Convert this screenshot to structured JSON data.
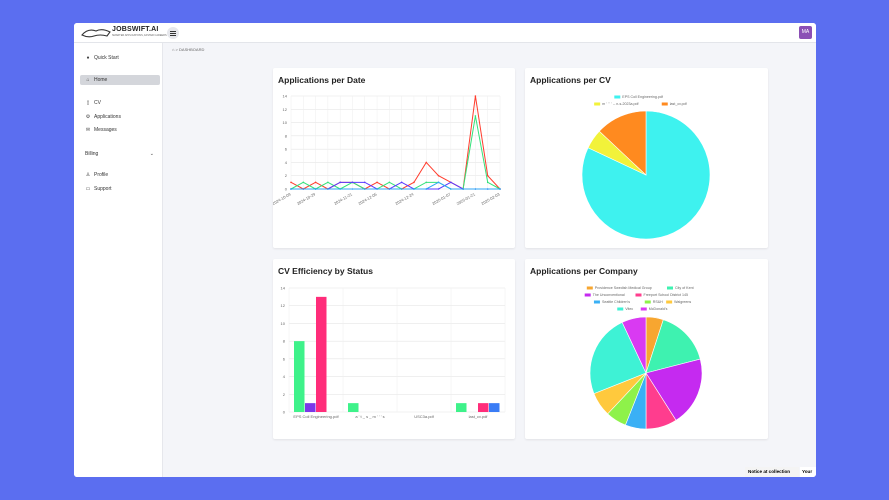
{
  "app": {
    "title": "JOBSWIFT.AI",
    "subtitle": "SMARTER APPLICATIONS, FASTER CAREERS",
    "avatar_initials": "MA"
  },
  "breadcrumb": {
    "home_icon": "home-icon",
    "separator": ">",
    "current": "DASHBOARD"
  },
  "sidebar": {
    "items": [
      {
        "label": "Quick Start",
        "icon": "dot-icon",
        "glyph": "●"
      },
      {
        "label": "Home",
        "icon": "home-icon",
        "glyph": "⌂"
      },
      {
        "label": "CV",
        "icon": "document-icon",
        "glyph": "▯"
      },
      {
        "label": "Applications",
        "icon": "gear-icon",
        "glyph": "⚙"
      },
      {
        "label": "Messages",
        "icon": "envelope-icon",
        "glyph": "✉"
      },
      {
        "label": "Billing",
        "icon": "",
        "glyph": ""
      },
      {
        "label": "Profile",
        "icon": "user-icon",
        "glyph": "♙"
      },
      {
        "label": "Support",
        "icon": "message-icon",
        "glyph": "▭"
      }
    ]
  },
  "cards": {
    "apps_per_date": {
      "title": "Applications per Date"
    },
    "apps_per_cv": {
      "title": "Applications per CV"
    },
    "cv_efficiency": {
      "title": "CV Efficiency by Status"
    },
    "apps_per_company": {
      "title": "Applications per Company"
    }
  },
  "notice": {
    "label": "Notice at collection",
    "extra": "Your"
  },
  "chart_data": [
    {
      "type": "line",
      "title": "Applications per Date",
      "x": [
        "2024-10-09",
        "2024-10-15",
        "2024-10-29",
        "2024-11-06",
        "2024-11-12",
        "2024-11-21",
        "2024-11-27",
        "2024-12-05",
        "2024-12-11",
        "2024-12-19",
        "2024-12-24",
        "2024-12-30",
        "2025-01-01",
        "2025-01-07",
        "2025-01-14",
        "2025-01-21",
        "2025-01-29",
        "2025-02-03"
      ],
      "x_tick_labels": [
        "2024-10-09",
        "2024-10-29",
        "2024-11-21",
        "2024-12-05",
        "2024-12-24",
        "2025-01-07",
        "2025-01-21",
        "2025-02-03"
      ],
      "ylim": [
        0,
        14
      ],
      "yticks": [
        0,
        2,
        4,
        6,
        8,
        10,
        12,
        14
      ],
      "grid": true,
      "series": [
        {
          "color": "#ff3d2e",
          "values": [
            1,
            0,
            1,
            0,
            1,
            1,
            0,
            1,
            0,
            0,
            1,
            4,
            2,
            1,
            0,
            14,
            2,
            0
          ]
        },
        {
          "color": "#33e27a",
          "values": [
            0,
            1,
            0,
            1,
            0,
            1,
            0,
            0,
            1,
            0,
            0,
            1,
            1,
            0,
            0,
            11,
            1,
            0
          ]
        },
        {
          "color": "#5a39ff",
          "values": [
            0,
            0,
            0,
            0,
            1,
            1,
            1,
            0,
            0,
            1,
            0,
            0,
            0,
            1,
            0,
            0,
            0,
            0
          ]
        },
        {
          "color": "#2fa6f5",
          "values": [
            0,
            0,
            0,
            0,
            0,
            0,
            0,
            0,
            0,
            0,
            0,
            0,
            1,
            0,
            0,
            0,
            0,
            0
          ]
        }
      ]
    },
    {
      "type": "pie",
      "title": "Applications per CV",
      "legend_position": "top",
      "slices": [
        {
          "label": "EPS Coll Engineering.pdf",
          "value": 82,
          "color": "#3ef2ef"
        },
        {
          "label": "m ' ' ' ' -- n-s-2023a.pdf",
          "value": 5,
          "color": "#f2f23a"
        },
        {
          "label": "last_cv.pdf",
          "value": 13,
          "color": "#ff8a1f"
        }
      ]
    },
    {
      "type": "bar",
      "title": "CV Efficiency by Status",
      "ylim": [
        0,
        14
      ],
      "yticks": [
        0,
        2,
        4,
        6,
        8,
        10,
        12,
        14
      ],
      "categories": [
        "EPS Coll Engineering.pdf",
        "a ' t _ s _ m ' ' ' s",
        "USC3a.pdf",
        "last_cv.pdf"
      ],
      "series": [
        {
          "color": "#3ef28a",
          "values": [
            8,
            1,
            0,
            1
          ]
        },
        {
          "color": "#7a38e8",
          "values": [
            1,
            0,
            0,
            0
          ]
        },
        {
          "color": "#ff2d7a",
          "values": [
            13,
            0,
            0,
            1
          ]
        },
        {
          "color": "#3a7cf5",
          "values": [
            0,
            0,
            0,
            1
          ]
        }
      ]
    },
    {
      "type": "pie",
      "title": "Applications per Company",
      "legend_position": "top",
      "slices": [
        {
          "label": "Providence Swedish Medical Group",
          "value": 5,
          "color": "#f7a630"
        },
        {
          "label": "City of Kent",
          "value": 16,
          "color": "#3ef2b0"
        },
        {
          "label": "The Unconventional",
          "value": 20,
          "color": "#c52af0"
        },
        {
          "label": "Freeport School District 145",
          "value": 9,
          "color": "#ff3d8e"
        },
        {
          "label": "Seattle Children's",
          "value": 6,
          "color": "#3ab0f5"
        },
        {
          "label": "RS&H",
          "value": 6,
          "color": "#8ef24a"
        },
        {
          "label": "Walgreens",
          "value": 7,
          "color": "#ffc93d"
        },
        {
          "label": "Vitec",
          "value": 24,
          "color": "#3ef2d5"
        },
        {
          "label": "McDonald's",
          "value": 7,
          "color": "#d93af2"
        }
      ]
    }
  ]
}
